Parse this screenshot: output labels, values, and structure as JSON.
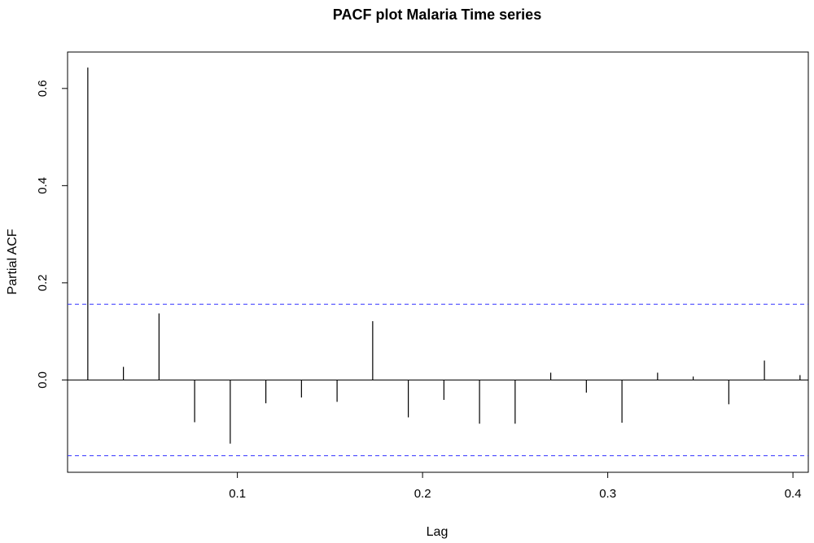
{
  "chart_data": {
    "type": "bar",
    "title": "PACF plot Malaria Time series",
    "xlabel": "Lag",
    "ylabel": "Partial ACF",
    "xlim": [
      0.0083,
      0.4083
    ],
    "ylim": [
      -0.19,
      0.675
    ],
    "x_ticks": [
      "0.1",
      "0.2",
      "0.3",
      "0.4"
    ],
    "y_ticks": [
      "0.0",
      "0.2",
      "0.4",
      "0.6"
    ],
    "confidence_bound": 0.156,
    "confidence_color": "#3333ff",
    "lag_step": 0.01923,
    "values": [
      0.643,
      0.027,
      0.137,
      -0.087,
      -0.131,
      -0.048,
      -0.036,
      -0.045,
      0.121,
      -0.077,
      -0.041,
      -0.09,
      -0.09,
      0.015,
      -0.026,
      -0.088,
      0.015,
      0.007,
      -0.05,
      0.04,
      0.01
    ],
    "grid": false,
    "legend": "none"
  }
}
